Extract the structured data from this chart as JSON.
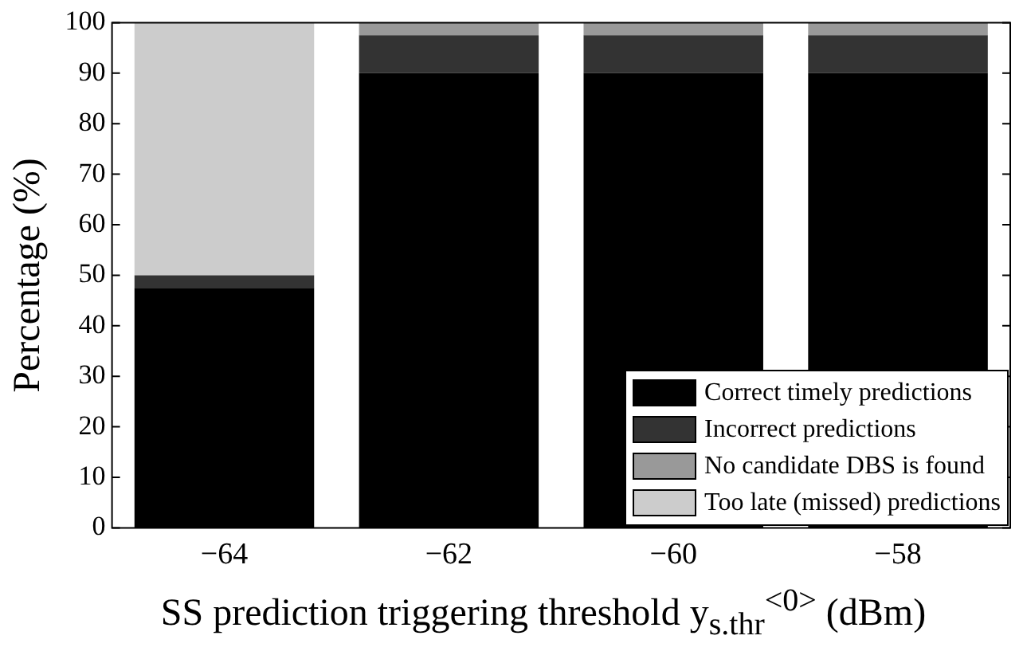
{
  "chart_data": {
    "type": "bar",
    "stacked": true,
    "xlabel": "SS prediction triggering threshold y$_{s.thr}$$^{<0>}$ (dBm)",
    "ylabel": "Percentage (%)",
    "categories": [
      "−64",
      "−62",
      "−60",
      "−58"
    ],
    "series": [
      {
        "name": "Correct timely predictions",
        "color": "#000000",
        "values": [
          47.5,
          90,
          90,
          90
        ]
      },
      {
        "name": "Incorrect predictions",
        "color": "#333333",
        "values": [
          2.5,
          7.5,
          7.5,
          7.5
        ]
      },
      {
        "name": "No candidate DBS is found",
        "color": "#999999",
        "values": [
          0,
          2.5,
          2.5,
          2.5
        ]
      },
      {
        "name": "Too late (missed) predictions",
        "color": "#cccccc",
        "values": [
          50,
          0,
          0,
          0
        ]
      }
    ],
    "ylim": [
      0,
      100
    ],
    "yticks": [
      0,
      10,
      20,
      30,
      40,
      50,
      60,
      70,
      80,
      90,
      100
    ],
    "grid": false,
    "legend": "bottom right"
  }
}
